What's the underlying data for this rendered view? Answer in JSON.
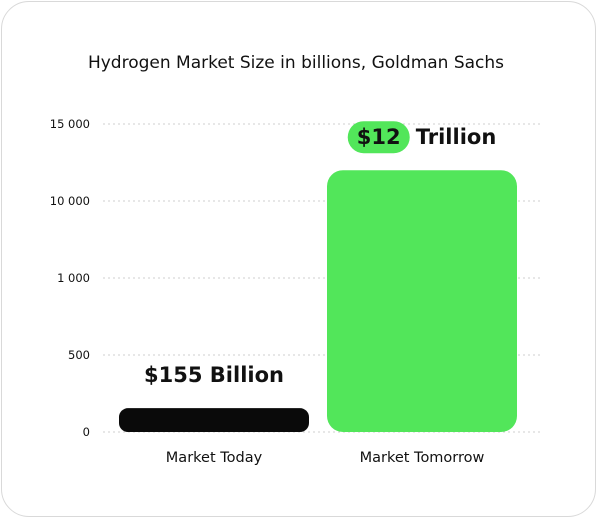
{
  "chart_data": {
    "type": "bar",
    "title": "Hydrogen Market Size in billions, Goldman Sachs",
    "xlabel": "",
    "ylabel": "",
    "y_ticks": [
      "0",
      "500",
      "1 000",
      "10 000",
      "15 000"
    ],
    "y_tick_values": [
      0,
      500,
      1000,
      10000,
      15000
    ],
    "grid": true,
    "legend": "none",
    "categories": [
      "Market Today",
      "Market Tomorrow"
    ],
    "values": [
      155,
      12000
    ],
    "data_labels": [
      {
        "text": "$155 Billion",
        "highlight": ""
      },
      {
        "text": "Trillion",
        "highlight": "$12"
      }
    ],
    "colors": {
      "bar_today": "#0a0a0a",
      "bar_tomorrow": "#52e65a",
      "highlight": "#52e65a"
    }
  }
}
